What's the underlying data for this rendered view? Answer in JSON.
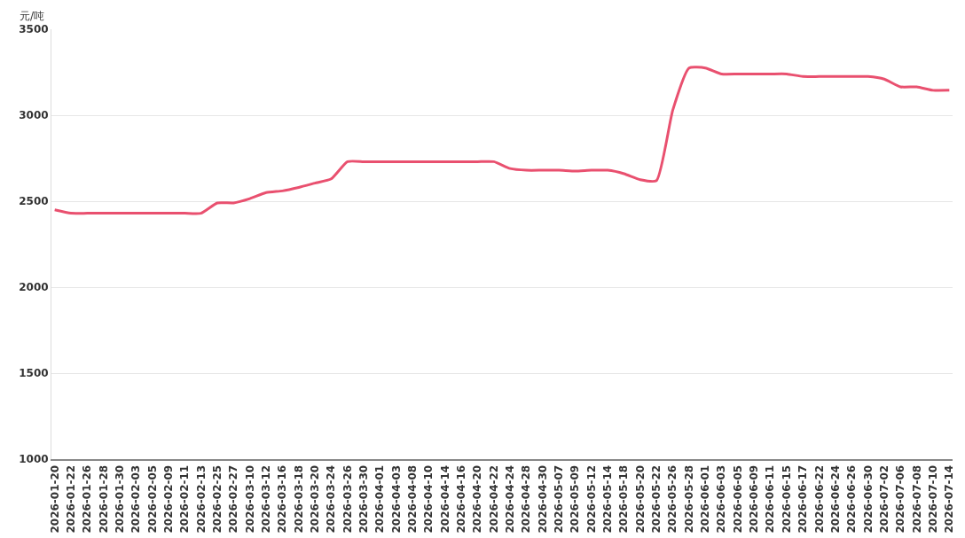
{
  "chart_data": {
    "type": "line",
    "ylabel": "元/吨",
    "categories": [
      "2026-01-20",
      "2026-01-22",
      "2026-01-26",
      "2026-01-28",
      "2026-01-30",
      "2026-02-03",
      "2026-02-05",
      "2026-02-09",
      "2026-02-11",
      "2026-02-13",
      "2026-02-25",
      "2026-02-27",
      "2026-03-10",
      "2026-03-12",
      "2026-03-16",
      "2026-03-18",
      "2026-03-20",
      "2026-03-24",
      "2026-03-26",
      "2026-03-30",
      "2026-04-01",
      "2026-04-03",
      "2026-04-08",
      "2026-04-10",
      "2026-04-14",
      "2026-04-16",
      "2026-04-20",
      "2026-04-22",
      "2026-04-24",
      "2026-04-28",
      "2026-04-30",
      "2026-05-07",
      "2026-05-09",
      "2026-05-12",
      "2026-05-14",
      "2026-05-18",
      "2026-05-20",
      "2026-05-22",
      "2026-05-26",
      "2026-05-28",
      "2026-06-01",
      "2026-06-03",
      "2026-06-05",
      "2026-06-09",
      "2026-06-11",
      "2026-06-15",
      "2026-06-17",
      "2026-06-22",
      "2026-06-24",
      "2026-06-26",
      "2026-06-30",
      "2026-07-02",
      "2026-07-06",
      "2026-07-08",
      "2026-07-10",
      "2026-07-14"
    ],
    "series": [
      {
        "color": "#e9506f",
        "values": [
          2450,
          2430,
          2430,
          2430,
          2430,
          2430,
          2430,
          2430,
          2430,
          2430,
          2490,
          2490,
          2515,
          2550,
          2560,
          2580,
          2605,
          2630,
          2730,
          2730,
          2730,
          2730,
          2730,
          2730,
          2730,
          2730,
          2730,
          2730,
          2690,
          2680,
          2680,
          2680,
          2675,
          2680,
          2680,
          2660,
          2625,
          2620,
          3030,
          3275,
          3275,
          3240,
          3240,
          3240,
          3240,
          3240,
          3225,
          3225,
          3225,
          3225,
          3225,
          3210,
          3165,
          3165,
          3145,
          3145
        ]
      }
    ],
    "ylim": [
      1000,
      3500
    ],
    "yticks": [
      1000,
      1500,
      2000,
      2500,
      3000,
      3500
    ],
    "grid": "y",
    "marker": "none",
    "line_style": "solid"
  }
}
